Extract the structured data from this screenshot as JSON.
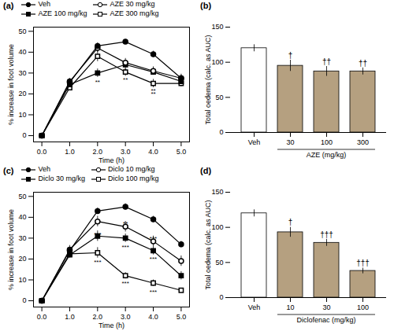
{
  "chart_data": [
    {
      "type": "line",
      "title": "(a)",
      "xlabel": "Time (h)",
      "ylabel": "% increase in foot volume",
      "x": [
        0,
        1,
        2,
        3,
        4,
        5
      ],
      "xlim": [
        -0.3,
        5.3
      ],
      "xticks": [
        0,
        1,
        2,
        3,
        4,
        5
      ],
      "ylim": [
        -3,
        52
      ],
      "yticks": [
        0,
        10,
        20,
        30,
        40,
        50
      ],
      "legend": "top",
      "series": [
        {
          "name": "Veh",
          "color": "black",
          "marker": "circle",
          "values": [
            0,
            25.5,
            43.0,
            45.0,
            39.0,
            27.5
          ],
          "errors": [
            0,
            1.2,
            1.5,
            1.2,
            1.5,
            1.5
          ]
        },
        {
          "name": "AZE 30 mg/kg",
          "color": "black",
          "marker": "open_circle",
          "values": [
            0,
            26.0,
            42.0,
            35.0,
            31.0,
            27.5
          ],
          "errors": [
            0,
            1.5,
            2.0,
            2.0,
            2.0,
            2.0
          ]
        },
        {
          "name": "AZE 100 mg/kg",
          "color": "black",
          "marker": "square",
          "values": [
            0,
            24.5,
            30.0,
            34.0,
            30.5,
            26.0
          ],
          "errors": [
            0,
            1.5,
            2.0,
            1.5,
            1.5,
            1.5
          ]
        },
        {
          "name": "AZE 300 mg/kg",
          "color": "black",
          "marker": "open_square",
          "values": [
            0,
            23.0,
            38.0,
            30.5,
            25.0,
            25.0
          ],
          "errors": [
            0,
            1.5,
            2.5,
            2.0,
            2.0,
            1.5
          ]
        }
      ],
      "annotations": [
        {
          "x": 2,
          "y": 27.0,
          "text": "**"
        },
        {
          "x": 3,
          "y": 32.5,
          "text": "*"
        },
        {
          "x": 3,
          "y": 28.0,
          "text": "**"
        },
        {
          "x": 4,
          "y": 22.5,
          "text": "**"
        },
        {
          "x": 4,
          "y": 21.0,
          "text": "**"
        }
      ]
    },
    {
      "type": "bar",
      "title": "(b)",
      "xlabel": "AZE (mg/kg)",
      "ylabel": "Total oedema (calc. as AUC)",
      "categories": [
        "Veh",
        "30",
        "100",
        "300"
      ],
      "values": [
        120.0,
        95.0,
        87.0,
        87.0
      ],
      "errors": [
        5.0,
        8.0,
        7.0,
        5.0
      ],
      "colors": [
        "white",
        "#b5a080",
        "#b5a080",
        "#b5a080"
      ],
      "ylim": [
        0,
        150
      ],
      "yticks": [
        0,
        50,
        100,
        150
      ],
      "annotations": [
        {
          "x": "30",
          "y": 106,
          "text": "†"
        },
        {
          "x": "100",
          "y": 97,
          "text": "††"
        },
        {
          "x": "300",
          "y": 95,
          "text": "††"
        }
      ]
    },
    {
      "type": "line",
      "title": "(c)",
      "xlabel": "Time (h)",
      "ylabel": "% increase in foot volume",
      "x": [
        0,
        1,
        2,
        3,
        4,
        5
      ],
      "xlim": [
        -0.3,
        5.3
      ],
      "xticks": [
        0,
        1,
        2,
        3,
        4,
        5
      ],
      "ylim": [
        -3,
        52
      ],
      "yticks": [
        0,
        10,
        20,
        30,
        40,
        50
      ],
      "legend": "top",
      "series": [
        {
          "name": "Veh",
          "color": "black",
          "marker": "circle",
          "values": [
            0,
            24.0,
            43.0,
            45.0,
            39.0,
            27.0
          ],
          "errors": [
            0,
            1.5,
            1.5,
            1.5,
            1.5,
            1.5
          ]
        },
        {
          "name": "Diclo 10 mg/kg",
          "color": "black",
          "marker": "open_circle",
          "values": [
            0,
            24.5,
            38.0,
            35.5,
            28.5,
            19.0
          ],
          "errors": [
            0,
            2.0,
            2.5,
            2.5,
            2.5,
            2.5
          ]
        },
        {
          "name": "Diclo 30 mg/kg",
          "color": "black",
          "marker": "square",
          "values": [
            0,
            22.0,
            31.0,
            30.0,
            24.0,
            12.0
          ],
          "errors": [
            0,
            1.5,
            2.5,
            2.0,
            2.0,
            2.0
          ]
        },
        {
          "name": "Diclo 100 mg/kg",
          "color": "black",
          "marker": "open_square",
          "values": [
            0,
            22.5,
            23.0,
            12.0,
            8.5,
            5.0
          ],
          "errors": [
            0,
            1.5,
            2.5,
            1.5,
            1.5,
            1.0
          ]
        }
      ],
      "annotations": [
        {
          "x": 2,
          "y": 33.0,
          "text": "***"
        },
        {
          "x": 2,
          "y": 19.5,
          "text": "***"
        },
        {
          "x": 3,
          "y": 38.0,
          "text": "**"
        },
        {
          "x": 3,
          "y": 27.0,
          "text": "***"
        },
        {
          "x": 3,
          "y": 9.5,
          "text": "***"
        },
        {
          "x": 4,
          "y": 31.0,
          "text": "***"
        },
        {
          "x": 4,
          "y": 21.0,
          "text": "***"
        },
        {
          "x": 4,
          "y": 5.5,
          "text": "***"
        }
      ]
    },
    {
      "type": "bar",
      "title": "(d)",
      "xlabel": "Diclofenac (mg/kg)",
      "ylabel": "Total oedema (calc. as AUC)",
      "categories": [
        "Veh",
        "10",
        "30",
        "100"
      ],
      "values": [
        120.0,
        93.0,
        78.0,
        38.0
      ],
      "errors": [
        5.0,
        7.0,
        5.0,
        4.0
      ],
      "colors": [
        "white",
        "#b5a080",
        "#b5a080",
        "#b5a080"
      ],
      "ylim": [
        0,
        150
      ],
      "yticks": [
        0,
        50,
        100,
        150
      ],
      "annotations": [
        {
          "x": "10",
          "y": 103,
          "text": "†"
        },
        {
          "x": "30",
          "y": 86,
          "text": "†††"
        },
        {
          "x": "100",
          "y": 45,
          "text": "†††"
        }
      ]
    }
  ]
}
